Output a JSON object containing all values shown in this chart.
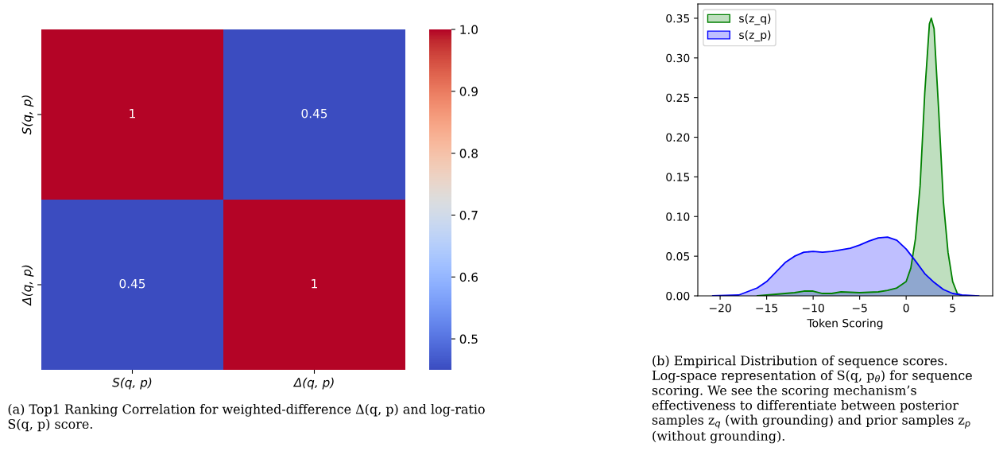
{
  "chart_data": [
    {
      "type": "heatmap",
      "categories": [
        "S(q, p)",
        "Δ(q, p)"
      ],
      "y_categories": [
        "S(q, p)",
        "Δ(q, p)"
      ],
      "cells": [
        [
          1,
          0.45
        ],
        [
          0.45,
          1
        ]
      ],
      "cell_labels": [
        [
          "1",
          "0.45"
        ],
        [
          "0.45",
          "1"
        ]
      ],
      "clim": [
        0.45,
        1.0
      ],
      "cticks": [
        0.5,
        0.6,
        0.7,
        0.8,
        0.9,
        {
          "value": 1,
          "label": "1.0"
        }
      ],
      "annotations": [
        "(a) Top1 Ranking Correlation for weighted-difference Δ(q, p) and log-ratio S(q, p) score."
      ]
    },
    {
      "type": "area",
      "xlabel": "Token Scoring",
      "legend": "top left",
      "series": [
        {
          "name": "s(z_q)",
          "color": "#008000",
          "x": [
            -16,
            -14,
            -12,
            -11,
            -10,
            -9,
            -8,
            -7,
            -5,
            -3,
            -2,
            -1,
            0,
            0.5,
            1,
            1.5,
            2,
            2.5,
            2.7,
            3,
            3.5,
            4,
            4.5,
            5,
            5.5,
            6
          ],
          "values": [
            0,
            0.002,
            0.004,
            0.006,
            0.006,
            0.003,
            0.003,
            0.005,
            0.004,
            0.005,
            0.007,
            0.01,
            0.018,
            0.035,
            0.072,
            0.139,
            0.256,
            0.343,
            0.35,
            0.337,
            0.233,
            0.119,
            0.055,
            0.018,
            0.003,
            0
          ]
        },
        {
          "name": "s(z_p)",
          "color": "#0000ff",
          "x": [
            -20.8,
            -18,
            -16,
            -15,
            -14,
            -13,
            -12,
            -11,
            -10,
            -9,
            -8,
            -7,
            -6,
            -5,
            -4,
            -3,
            -2,
            -1,
            0,
            1,
            2,
            3,
            4,
            5,
            6,
            7.8
          ],
          "values": [
            0,
            0.001,
            0.01,
            0.018,
            0.03,
            0.042,
            0.05,
            0.055,
            0.056,
            0.055,
            0.056,
            0.058,
            0.06,
            0.064,
            0.069,
            0.073,
            0.074,
            0.07,
            0.059,
            0.044,
            0.028,
            0.017,
            0.008,
            0.003,
            0.001,
            0
          ]
        }
      ],
      "xlim": [
        -22.4,
        9.3
      ],
      "xticks": [
        {
          "value": -20,
          "label": "−20"
        },
        {
          "value": -15,
          "label": "−15"
        },
        {
          "value": -10,
          "label": "−10"
        },
        {
          "value": -5,
          "label": "−5"
        },
        0,
        5
      ],
      "ylim": [
        0,
        0.368
      ],
      "yticks": [
        {
          "value": 0,
          "label": "0.00"
        },
        {
          "value": 0.05,
          "label": "0.05"
        },
        {
          "value": 0.1,
          "label": "0.10"
        },
        {
          "value": 0.15,
          "label": "0.15"
        },
        {
          "value": 0.2,
          "label": "0.20"
        },
        {
          "value": 0.25,
          "label": "0.25"
        },
        {
          "value": 0.3,
          "label": "0.30"
        },
        {
          "value": 0.35,
          "label": "0.35"
        }
      ],
      "annotations": [
        "(b) Empirical Distribution of sequence scores. Log-space representation of S(q, p$_{θ}$) for sequence scoring. We see the scoring mechanism’s effectiveness to differentiate between posterior samples z$_{q}$ (with grounding) and prior samples z$_{p}$ (without grounding)."
      ]
    }
  ]
}
